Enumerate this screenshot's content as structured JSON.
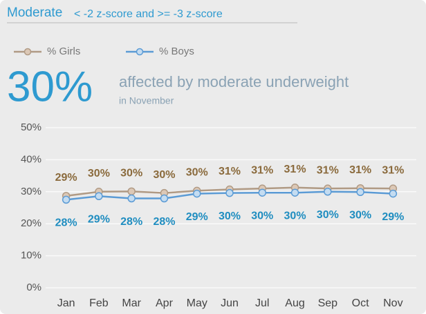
{
  "header": {
    "title": "Moderate",
    "subtitle": "< -2 z-score and >= -3 z-score"
  },
  "headline": {
    "value": "30%",
    "text": "affected by moderate underweight",
    "period": "in November"
  },
  "chart_data": {
    "type": "line",
    "categories": [
      "Jan",
      "Feb",
      "Mar",
      "Apr",
      "May",
      "Jun",
      "Jul",
      "Aug",
      "Sep",
      "Oct",
      "Nov"
    ],
    "series": [
      {
        "name": "% Girls",
        "color": "#b09a84",
        "marker_fill": "#dcc8b6",
        "label_color": "#8a6a3c",
        "values": [
          28.7,
          30.0,
          30.1,
          29.6,
          30.3,
          30.7,
          31.0,
          31.3,
          31.0,
          31.1,
          31.0
        ],
        "value_labels": [
          "29%",
          "30%",
          "30%",
          "30%",
          "30%",
          "31%",
          "31%",
          "31%",
          "31%",
          "31%",
          "31%"
        ]
      },
      {
        "name": "% Boys",
        "color": "#5b9bd5",
        "marker_fill": "#c4dcf1",
        "label_color": "#1f8dc0",
        "values": [
          27.5,
          28.6,
          27.9,
          27.9,
          29.4,
          29.6,
          29.7,
          29.7,
          30.0,
          29.9,
          29.4
        ],
        "value_labels": [
          "28%",
          "29%",
          "28%",
          "28%",
          "29%",
          "30%",
          "30%",
          "30%",
          "30%",
          "30%",
          "29%"
        ]
      }
    ],
    "ylim": [
      0,
      50
    ],
    "yticks": [
      {
        "value": 0,
        "label": "0%"
      },
      {
        "value": 10,
        "label": "10%"
      },
      {
        "value": 20,
        "label": "20%"
      },
      {
        "value": 30,
        "label": "30%"
      },
      {
        "value": 40,
        "label": "40%"
      },
      {
        "value": 50,
        "label": "50%"
      }
    ],
    "grid": true
  }
}
